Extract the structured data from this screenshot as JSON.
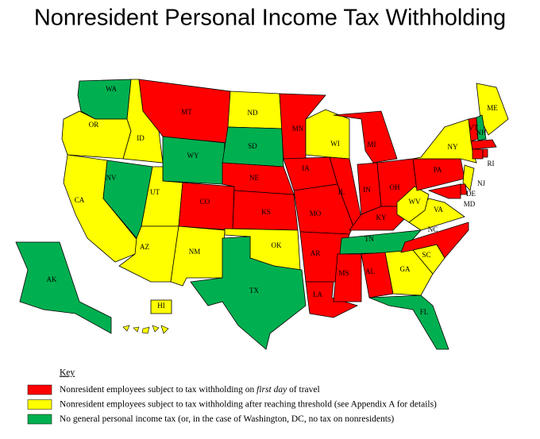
{
  "title": "Nonresident Personal Income Tax Withholding",
  "key": {
    "heading": "Key",
    "items": [
      {
        "color": "#ff0000",
        "text": [
          "Nonresident employees subject to tax withholding on ",
          "first day",
          " of travel"
        ]
      },
      {
        "color": "#ffff00",
        "text": [
          "Nonresident employees subject to tax withholding after reaching threshold (see Appendix A for details)"
        ]
      },
      {
        "color": "#00b050",
        "text": [
          "No general personal income tax (or, in the case of Washington, DC, no tax on nonresidents)"
        ]
      }
    ]
  },
  "states": [
    {
      "label": "WA",
      "category": 2
    },
    {
      "label": "OR",
      "category": 1
    },
    {
      "label": "CA",
      "category": 1
    },
    {
      "label": "ID",
      "category": 1
    },
    {
      "label": "NV",
      "category": 2
    },
    {
      "label": "MT",
      "category": 0
    },
    {
      "label": "WY",
      "category": 2
    },
    {
      "label": "UT",
      "category": 1
    },
    {
      "label": "AZ",
      "category": 1
    },
    {
      "label": "CO",
      "category": 0
    },
    {
      "label": "NM",
      "category": 1
    },
    {
      "label": "ND",
      "category": 1
    },
    {
      "label": "SD",
      "category": 2
    },
    {
      "label": "NE",
      "category": 0
    },
    {
      "label": "KS",
      "category": 0
    },
    {
      "label": "OK",
      "category": 1
    },
    {
      "label": "TX",
      "category": 2
    },
    {
      "label": "MN",
      "category": 0
    },
    {
      "label": "IA",
      "category": 0
    },
    {
      "label": "MO",
      "category": 0
    },
    {
      "label": "AR",
      "category": 0
    },
    {
      "label": "LA",
      "category": 0
    },
    {
      "label": "WI",
      "category": 1
    },
    {
      "label": "IL",
      "category": 0
    },
    {
      "label": "MI",
      "category": 0
    },
    {
      "label": "IN",
      "category": 0
    },
    {
      "label": "OH",
      "category": 0
    },
    {
      "label": "KY",
      "category": 0
    },
    {
      "label": "TN",
      "category": 2
    },
    {
      "label": "MS",
      "category": 0
    },
    {
      "label": "AL",
      "category": 0
    },
    {
      "label": "GA",
      "category": 1
    },
    {
      "label": "FL",
      "category": 2
    },
    {
      "label": "SC",
      "category": 1
    },
    {
      "label": "NC",
      "category": 0
    },
    {
      "label": "VA",
      "category": 1
    },
    {
      "label": "WV",
      "category": 1
    },
    {
      "label": "PA",
      "category": 0
    },
    {
      "label": "NY",
      "category": 1
    },
    {
      "label": "ME",
      "category": 1
    },
    {
      "label": "NJ",
      "category": 1
    },
    {
      "label": "DE",
      "category": 0
    },
    {
      "label": "MD",
      "category": 0
    },
    {
      "label": "VT",
      "category": 0
    },
    {
      "label": "NH",
      "category": 2
    },
    {
      "label": null,
      "category": 0
    },
    {
      "label": null,
      "category": 0
    },
    {
      "label": "RI",
      "category": 0
    },
    {
      "label": "AK",
      "category": 2
    },
    {
      "label": "HI",
      "category": 1
    }
  ]
}
